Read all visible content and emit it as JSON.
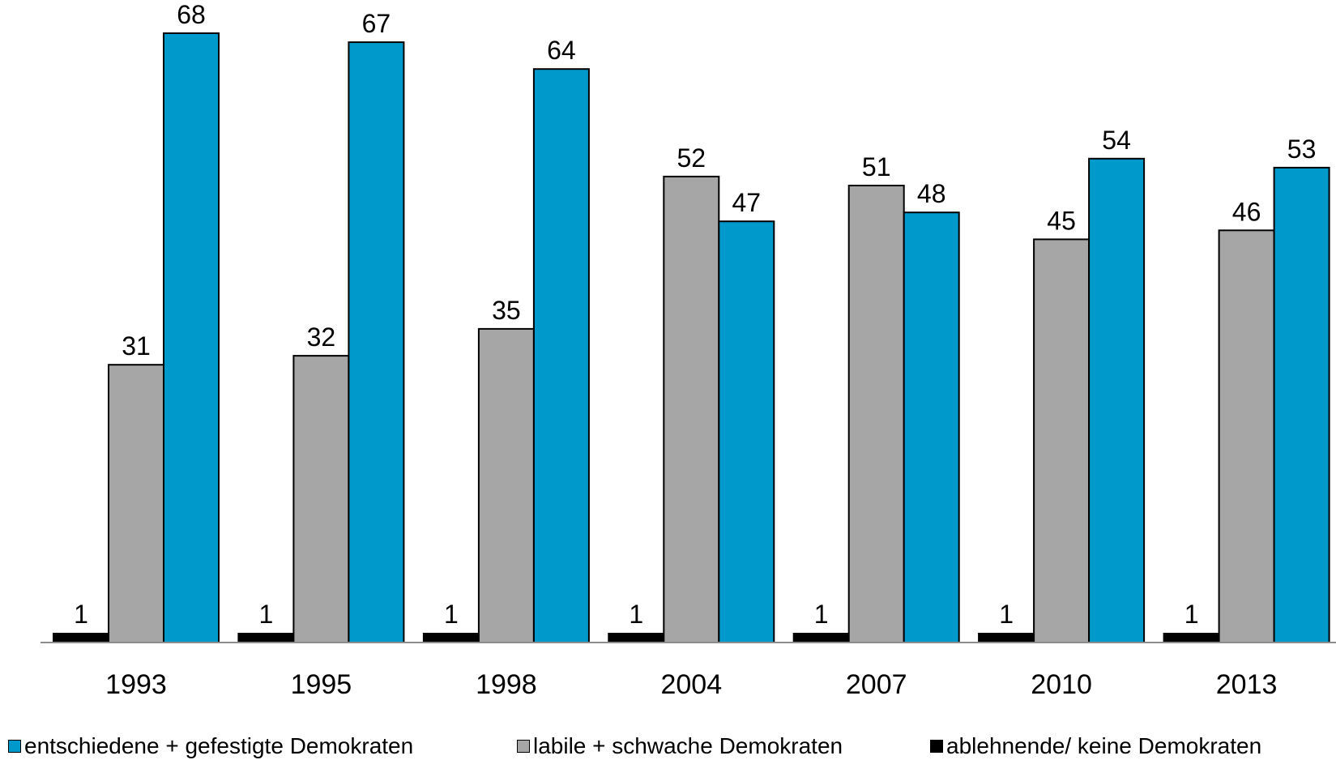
{
  "chart_data": {
    "type": "bar",
    "categories": [
      "1993",
      "1995",
      "1998",
      "2004",
      "2007",
      "2010",
      "2013"
    ],
    "series": [
      {
        "name": "ablehnende/ keine Demokraten",
        "color": "#000000",
        "values": [
          1,
          1,
          1,
          1,
          1,
          1,
          1
        ]
      },
      {
        "name": "labile + schwache Demokraten",
        "color": "#a6a6a6",
        "values": [
          31,
          32,
          35,
          52,
          51,
          45,
          46
        ]
      },
      {
        "name": "entschiedene + gefestigte Demokraten",
        "color": "#0099cc",
        "values": [
          68,
          67,
          64,
          47,
          48,
          54,
          53
        ]
      }
    ],
    "ylim": [
      0,
      68
    ],
    "grid": false,
    "data_labels": true,
    "legend_position": "bottom"
  },
  "legend": {
    "items": [
      {
        "label": "entschiedene + gefestigte Demokraten",
        "color": "#0099cc"
      },
      {
        "label": "labile + schwache Demokraten",
        "color": "#a6a6a6"
      },
      {
        "label": "ablehnende/ keine Demokraten",
        "color": "#000000"
      }
    ]
  }
}
